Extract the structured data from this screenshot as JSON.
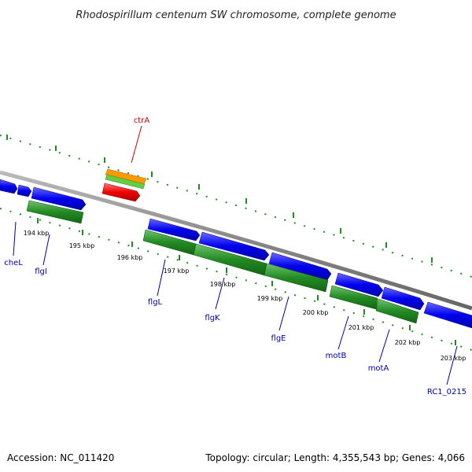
{
  "title": "Rhodospirillum centenum SW chromosome, complete genome",
  "footer": {
    "accession": "Accession: NC_011420",
    "summary": "Topology: circular; Length: 4,355,543 bp; Genes: 4,066"
  },
  "ticks": [
    "194 kbp",
    "195 kbp",
    "196 kbp",
    "197 kbp",
    "198 kbp",
    "199 kbp",
    "200 kbp",
    "201 kbp",
    "202 kbp",
    "203 kbp"
  ],
  "gene_labels": [
    {
      "name": "ctrA",
      "color": "#cc0000"
    },
    {
      "name": "cheL",
      "color": "#0000aa"
    },
    {
      "name": "flgI",
      "color": "#0000aa"
    },
    {
      "name": "flgL",
      "color": "#0000aa"
    },
    {
      "name": "flgK",
      "color": "#0000aa"
    },
    {
      "name": "flgE",
      "color": "#0000aa"
    },
    {
      "name": "motB",
      "color": "#0000aa"
    },
    {
      "name": "motA",
      "color": "#0000aa"
    },
    {
      "name": "RC1_0215",
      "color": "#0000aa"
    }
  ],
  "colors": {
    "backbone": "#808080",
    "cds_forward": "#0000ee",
    "gene_green": "#228b22",
    "ctrA_red": "#ee0000",
    "ctrA_orange": "#ff9900",
    "ctrA_lightgreen": "#55cc44",
    "tick_green": "#228b22",
    "text": "#000000"
  }
}
